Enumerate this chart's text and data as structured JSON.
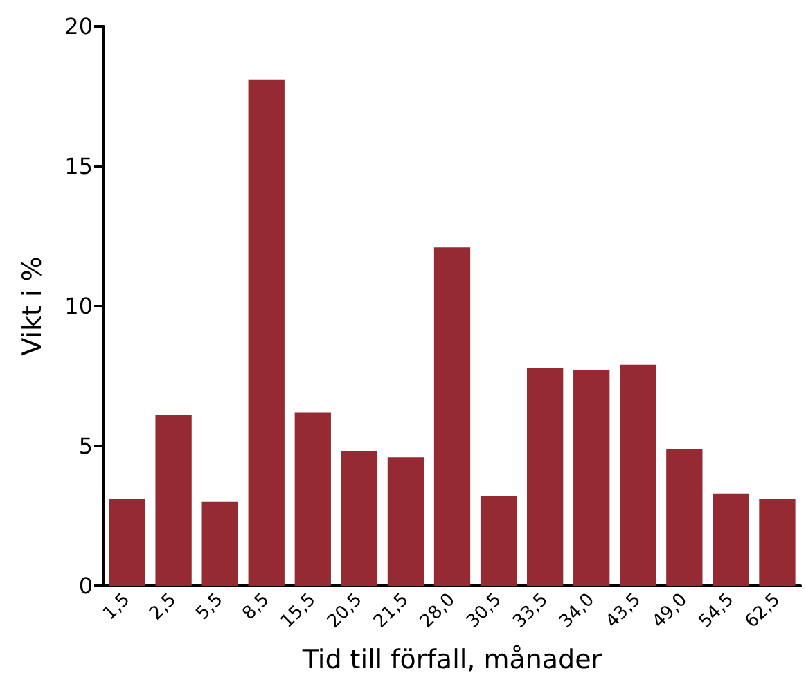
{
  "chart_data": {
    "type": "bar",
    "xlabel": "Tid till förfall, månader",
    "ylabel": "Vikt i %",
    "categories": [
      "1,5",
      "2,5",
      "5,5",
      "8,5",
      "15,5",
      "20,5",
      "21,5",
      "28,0",
      "30,5",
      "33,5",
      "34,0",
      "43,5",
      "49,0",
      "54,5",
      "62,5"
    ],
    "values": [
      3.1,
      6.1,
      3.0,
      18.1,
      6.2,
      4.8,
      4.6,
      12.1,
      3.2,
      7.8,
      7.7,
      7.9,
      4.9,
      3.3,
      3.1
    ],
    "color": "#962a32",
    "ylim": [
      0,
      20
    ],
    "yticks": [
      0,
      5,
      10,
      15,
      20
    ],
    "grid": false
  }
}
